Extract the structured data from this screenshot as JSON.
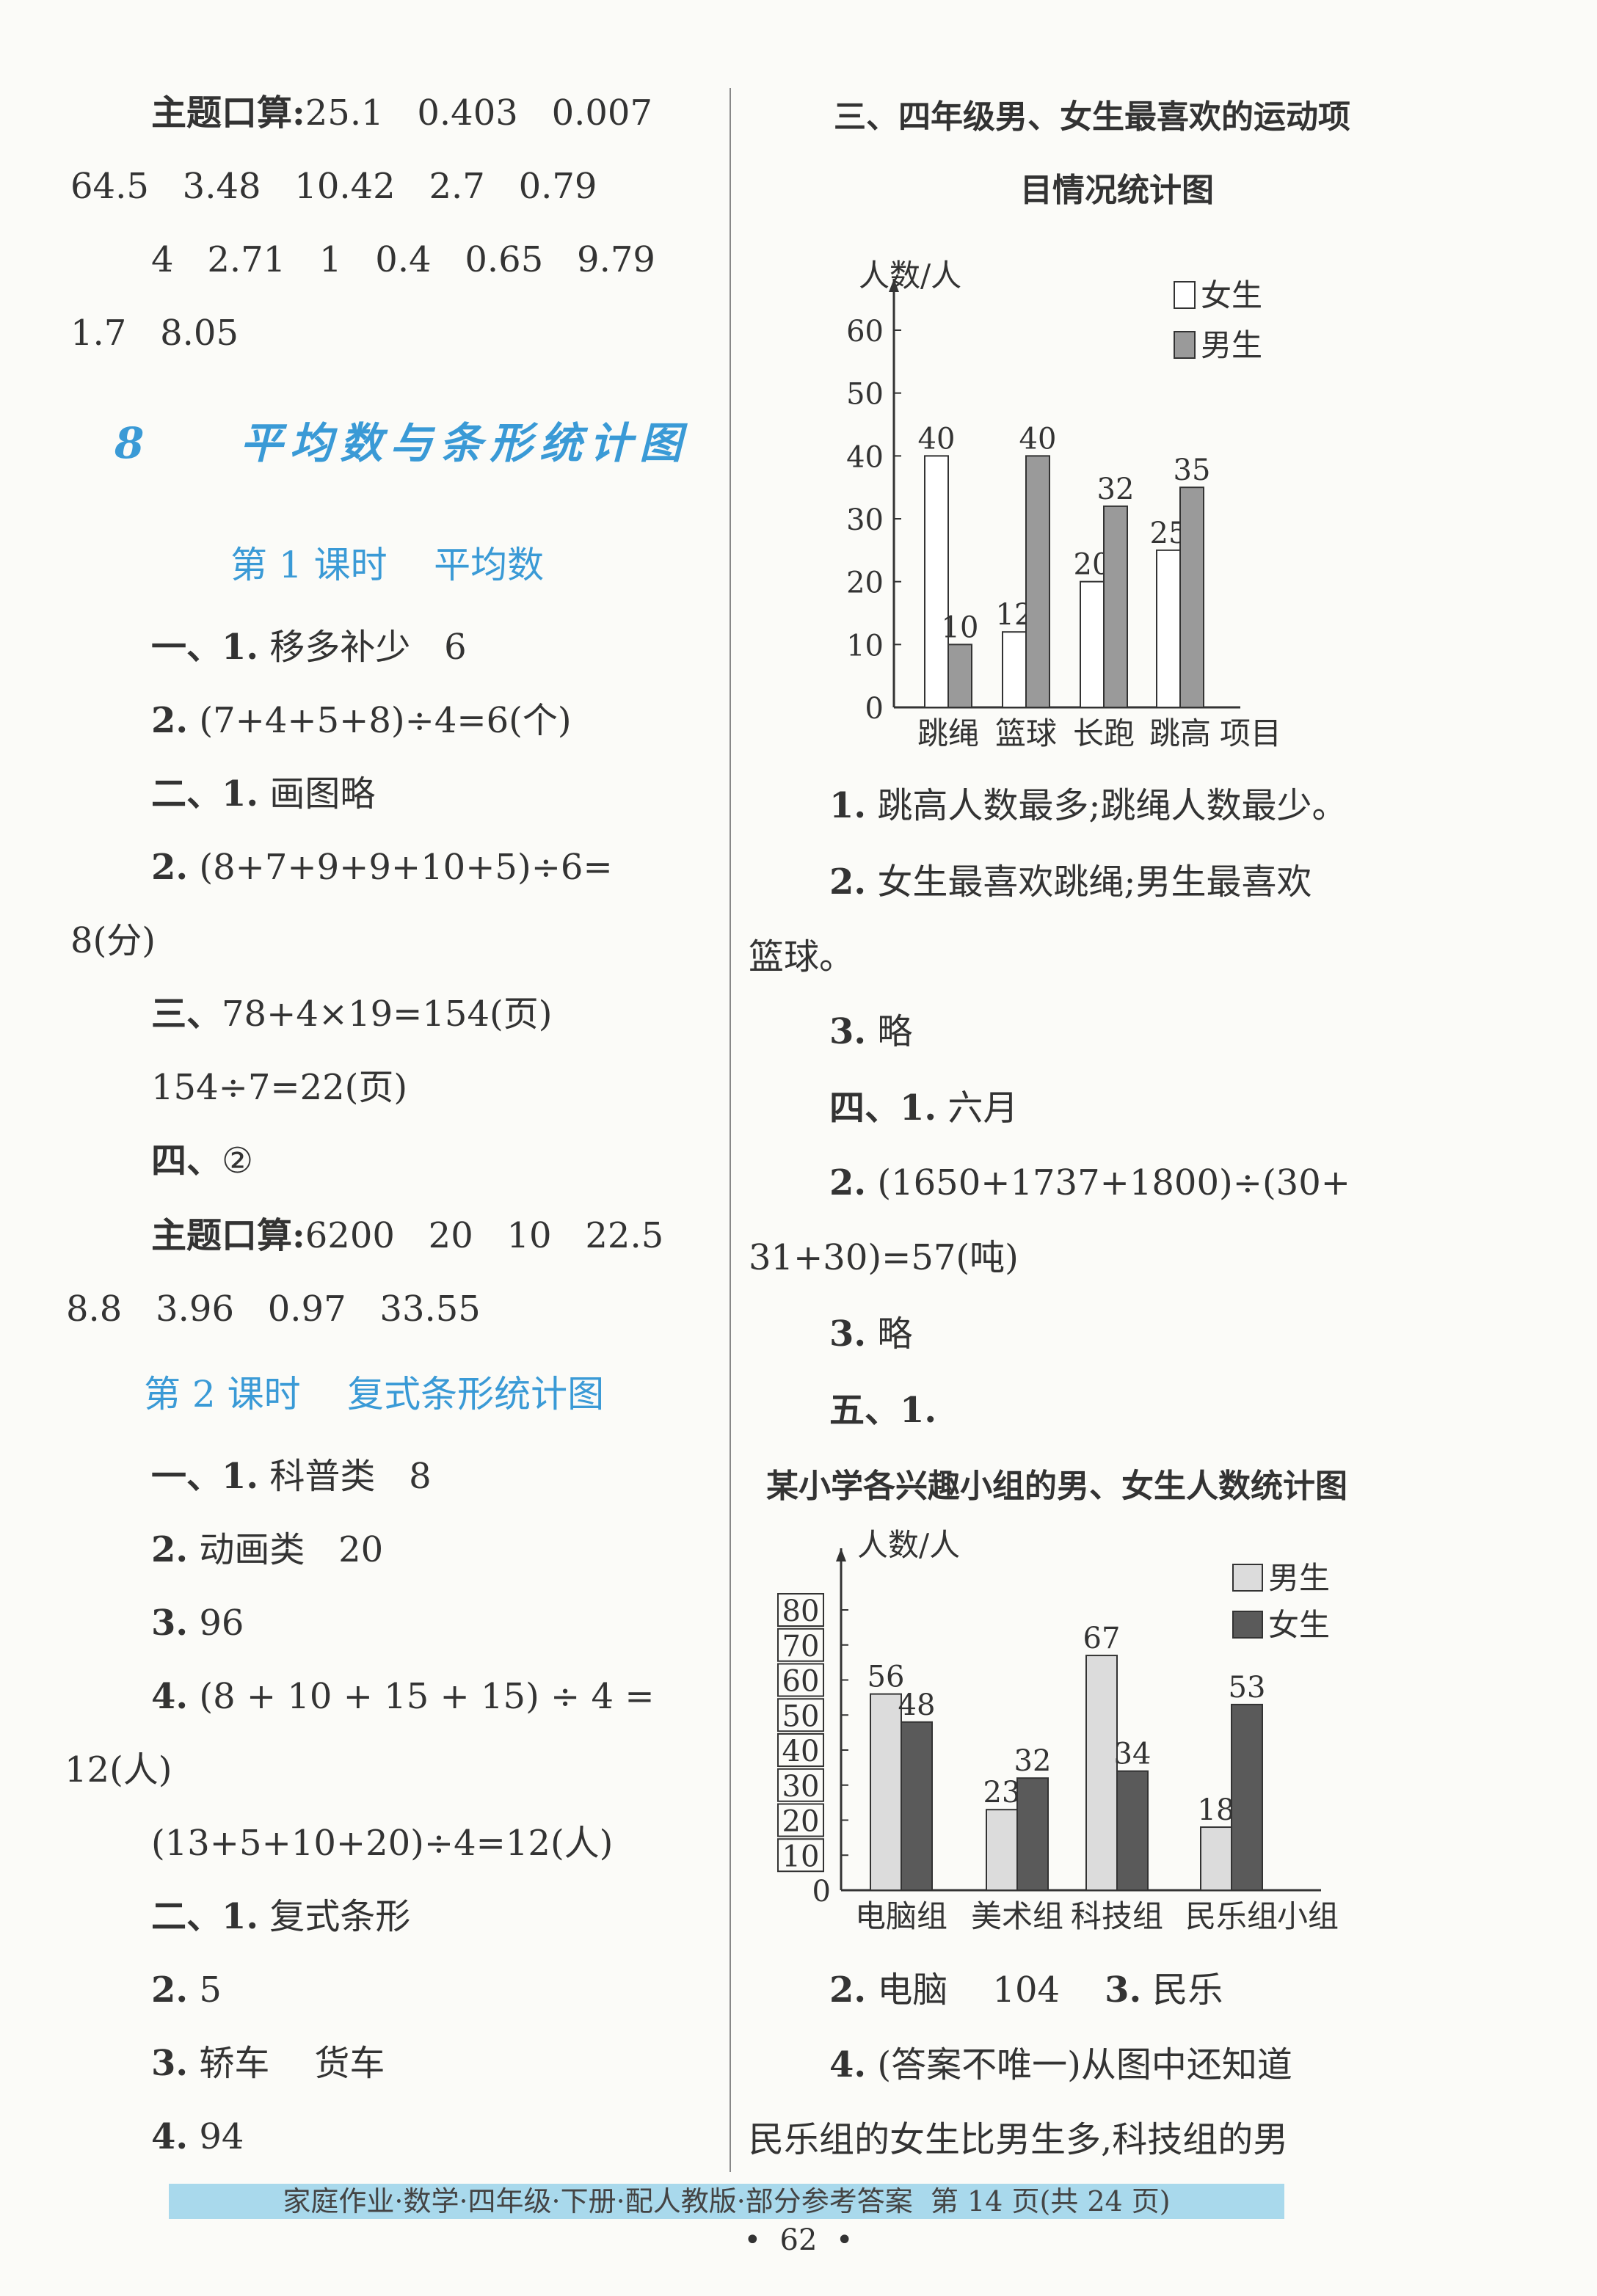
{
  "left": {
    "l1_label": "主题口算:",
    "l1": "25.1   0.403   0.007",
    "l2": "64.5   3.48   10.42   2.7   0.79",
    "l3": "4   2.71   1   0.4   0.65   9.79",
    "l4": "1.7   8.05",
    "unit_title": "8    平均数与条形统计图",
    "lesson1": "第 1 课时    平均数",
    "a1_label": "一、1.",
    "a1": " 移多补少   6",
    "a2_label": "2.",
    "a2": " (7+4+5+8)÷4=6(个)",
    "a3_label": "二、1.",
    "a3": " 画图略",
    "a4_label": "2.",
    "a4": " (8+7+9+9+10+5)÷6=",
    "a5": "8(分)",
    "a6_label": "三、",
    "a6": "78+4×19=154(页)",
    "a7": "154÷7=22(页)",
    "a8_label": "四、",
    "a8": "②",
    "a9_label": "主题口算:",
    "a9": "6200   20   10   22.5",
    "a10": "8.8   3.96   0.97   33.55",
    "lesson2": "第 2 课时    复式条形统计图",
    "b1_label": "一、1.",
    "b1": " 科普类   8",
    "b2_label": "2.",
    "b2": " 动画类   20",
    "b3_label": "3.",
    "b3": " 96",
    "b4_label": "4.",
    "b4": " (8 + 10 + 15 + 15) ÷ 4 =",
    "b5": "12(人)",
    "b6": "(13+5+10+20)÷4=12(人)",
    "b7_label": "二、1.",
    "b7": " 复式条形",
    "b8_label": "2.",
    "b8": " 5",
    "b9_label": "3.",
    "b9": " 轿车    货车",
    "b10_label": "4.",
    "b10": " 94"
  },
  "right": {
    "t1": "三、四年级男、女生最喜欢的运动项",
    "t2": "目情况统计图",
    "r1_label": "1.",
    "r1": " 跳高人数最多;跳绳人数最少。",
    "r2_label": "2.",
    "r2": " 女生最喜欢跳绳;男生最喜欢",
    "r3": "篮球。",
    "r4_label": "3.",
    "r4": " 略",
    "r5_label": "四、1.",
    "r5": " 六月",
    "r6_label": "2.",
    "r6": " (1650+1737+1800)÷(30+",
    "r7": "31+30)=57(吨)",
    "r8_label": "3.",
    "r8": " 略",
    "r9_label": "五、1.",
    "r10_label": "2.",
    "r10": " 电脑    104    ",
    "r10b_label": "3.",
    "r10b": " 民乐",
    "r11_label": "4.",
    "r11": " (答案不唯一)从图中还知道",
    "r12": "民乐组的女生比男生多,科技组的男"
  },
  "chart_data": [
    {
      "type": "bar",
      "title": "",
      "ylabel": "人数/人",
      "xlabel": "项目",
      "ylim": [
        0,
        60
      ],
      "yticks": [
        0,
        10,
        20,
        30,
        40,
        50,
        60
      ],
      "categories": [
        "跳绳",
        "篮球",
        "长跑",
        "跳高"
      ],
      "series": [
        {
          "name": "女生",
          "values": [
            40,
            12,
            20,
            25
          ],
          "color": "#ffffff"
        },
        {
          "name": "男生",
          "values": [
            10,
            40,
            32,
            35
          ],
          "color": "#9a9a9a"
        }
      ],
      "legend": "top-right",
      "grid": false
    },
    {
      "type": "bar",
      "title": "某小学各兴趣小组的男、女生人数统计图",
      "ylabel": "人数/人",
      "xlabel": "小组",
      "ylim": [
        0,
        80
      ],
      "yticks": [
        0,
        10,
        20,
        30,
        40,
        50,
        60,
        70,
        80
      ],
      "categories": [
        "电脑组",
        "美术组",
        "科技组",
        "民乐组"
      ],
      "series": [
        {
          "name": "男生",
          "values": [
            56,
            23,
            67,
            18
          ],
          "color": "#dcdcdc"
        },
        {
          "name": "女生",
          "values": [
            48,
            32,
            34,
            53
          ],
          "color": "#5a5a5a"
        }
      ],
      "legend": "top-right",
      "grid": false
    }
  ],
  "footer": {
    "text": "家庭作业·数学·四年级·下册·配人教版·部分参考答案  第 14 页(共 24 页)",
    "page": "•  62  •",
    "band_color": "#a9d9ec"
  }
}
